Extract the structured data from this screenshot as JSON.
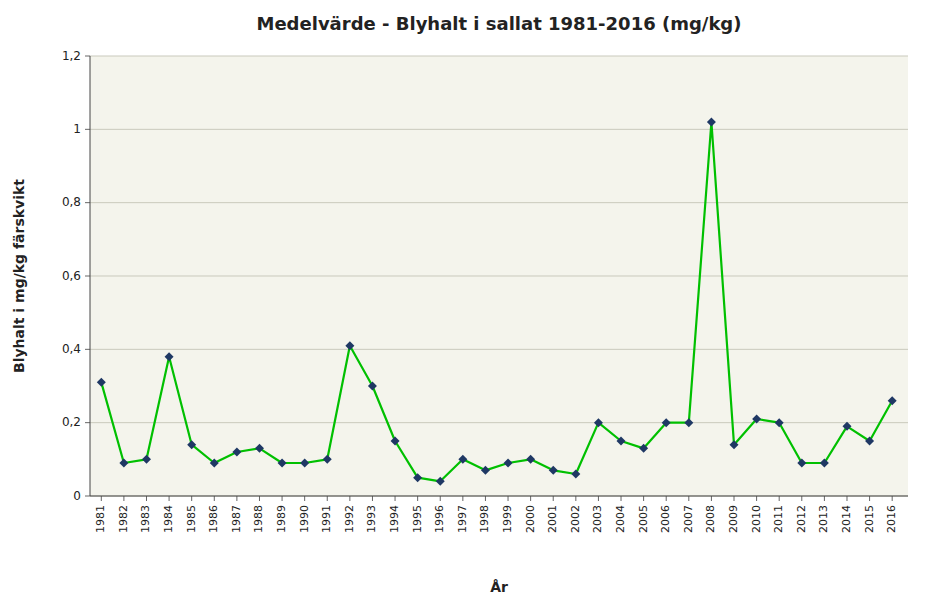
{
  "chart_data": {
    "type": "line",
    "title": "Medelvärde - Blyhalt i sallat 1981-2016 (mg/kg)",
    "x_label": "År",
    "y_label": "Blyhalt i mg/kg färskvikt",
    "x": [
      1981,
      1982,
      1983,
      1984,
      1985,
      1986,
      1987,
      1988,
      1989,
      1990,
      1991,
      1992,
      1993,
      1994,
      1995,
      1996,
      1997,
      1998,
      1999,
      2000,
      2001,
      2002,
      2003,
      2004,
      2005,
      2006,
      2007,
      2008,
      2009,
      2010,
      2011,
      2012,
      2013,
      2014,
      2015,
      2016
    ],
    "values": [
      0.31,
      0.09,
      0.1,
      0.38,
      0.14,
      0.09,
      0.12,
      0.13,
      0.09,
      0.09,
      0.1,
      0.41,
      0.3,
      0.15,
      0.05,
      0.04,
      0.1,
      0.07,
      0.09,
      0.1,
      0.07,
      0.06,
      0.2,
      0.15,
      0.13,
      0.2,
      0.2,
      1.02,
      0.14,
      0.21,
      0.2,
      0.09,
      0.09,
      0.19,
      0.15,
      0.26
    ],
    "color": "#00C000",
    "marker": "diamond",
    "colors": [
      "#1F3864",
      "#1F3864",
      "#1F3864",
      "#1F3864",
      "#1F3864",
      "#1F3864",
      "#1F3864",
      "#1F3864",
      "#1F3864",
      "#1F3864",
      "#1F3864",
      "#1F3864",
      "#1F3864",
      "#1F3864",
      "#1F3864",
      "#1F3864",
      "#1F3864",
      "#1F3864",
      "#1F3864",
      "#1F3864",
      "#1F3864",
      "#1F3864",
      "#1F3864",
      "#1F3864",
      "#1F3864",
      "#1F3864",
      "#1F3864",
      "#1F3864",
      "#1F3864",
      "#1F3864",
      "#1F3864",
      "#1F3864",
      "#1F3864",
      "#1F3864",
      "#1F3864",
      "#1F3864"
    ],
    "xlim": [
      1980.5,
      2016.7
    ],
    "xticks": [
      1981,
      1982,
      1983,
      1984,
      1985,
      1986,
      1987,
      1988,
      1989,
      1990,
      1991,
      1992,
      1993,
      1994,
      1995,
      1996,
      1997,
      1998,
      1999,
      2000,
      2001,
      2002,
      2003,
      2004,
      2005,
      2006,
      2007,
      2008,
      2009,
      2010,
      2011,
      2012,
      2013,
      2014,
      2015,
      2016
    ],
    "ylim": [
      0,
      1.2
    ],
    "yticks": [
      0,
      {
        "value": 0.2,
        "label": "0,2"
      },
      {
        "value": 0.4,
        "label": "0,4"
      },
      {
        "value": 0.6,
        "label": "0,6"
      },
      {
        "value": 0.8,
        "label": "0,8"
      },
      1,
      {
        "value": 1.2,
        "label": "1,2"
      }
    ],
    "grid": true
  }
}
